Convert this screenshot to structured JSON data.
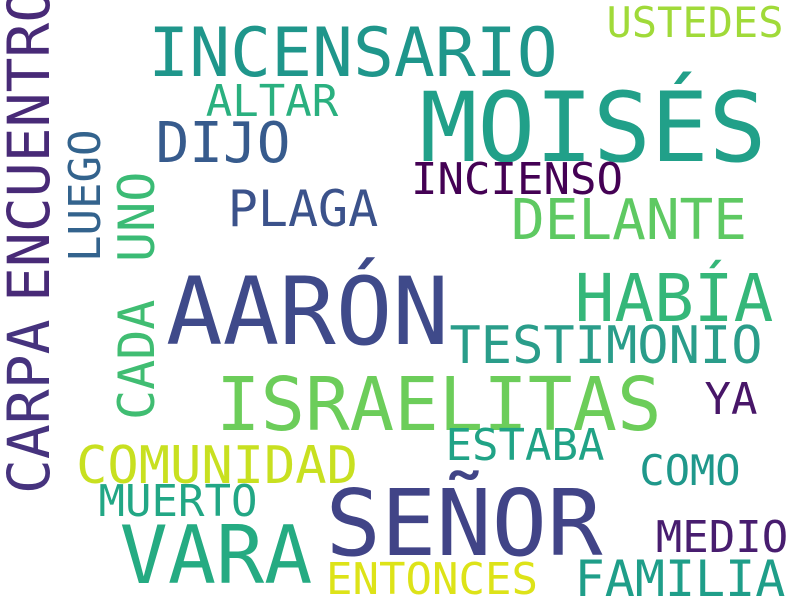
{
  "words": {
    "moises": {
      "text": "MOISÉS",
      "color": "#21a089"
    },
    "aaron": {
      "text": "AARÓN",
      "color": "#3f4a8a"
    },
    "senor": {
      "text": "SEÑOR",
      "color": "#414487"
    },
    "israelitas": {
      "text": "ISRAELITAS",
      "color": "#6ccd5a"
    },
    "vara": {
      "text": "VARA",
      "color": "#25ab82"
    },
    "incensario": {
      "text": "INCENSARIO",
      "color": "#1f968b"
    },
    "habia": {
      "text": "HABÍA",
      "color": "#35b779"
    },
    "carpa": {
      "text": "CARPA",
      "color": "#46337e"
    },
    "encuentro": {
      "text": "ENCUENTRO",
      "color": "#482a77"
    },
    "delante": {
      "text": "DELANTE",
      "color": "#5ec962"
    },
    "testimonio": {
      "text": "TESTIMONIO",
      "color": "#2a9d8a"
    },
    "comunidad": {
      "text": "COMUNIDAD",
      "color": "#c8e020"
    },
    "familia": {
      "text": "FAMILIA",
      "color": "#1f9e89"
    },
    "dijo": {
      "text": "DIJO",
      "color": "#375b8d"
    },
    "plaga": {
      "text": "PLAGA",
      "color": "#3b528b"
    },
    "cada": {
      "text": "CADA",
      "color": "#40bd72"
    },
    "entonces": {
      "text": "ENTONCES",
      "color": "#dde318"
    },
    "estaba": {
      "text": "ESTABA",
      "color": "#20a386"
    },
    "incienso": {
      "text": "INCIENSO",
      "color": "#440154"
    },
    "ustedes": {
      "text": "USTEDES",
      "color": "#a0da39"
    },
    "muerto": {
      "text": "MUERTO",
      "color": "#22a785"
    },
    "medio": {
      "text": "MEDIO",
      "color": "#481d6f"
    },
    "altar": {
      "text": "ALTAR",
      "color": "#2ab07f"
    },
    "como": {
      "text": "COMO",
      "color": "#1f988b"
    },
    "uno": {
      "text": "UNO",
      "color": "#3bbb75"
    },
    "luego": {
      "text": "LUEGO",
      "color": "#33638d"
    },
    "ya": {
      "text": "YA",
      "color": "#481668"
    }
  }
}
